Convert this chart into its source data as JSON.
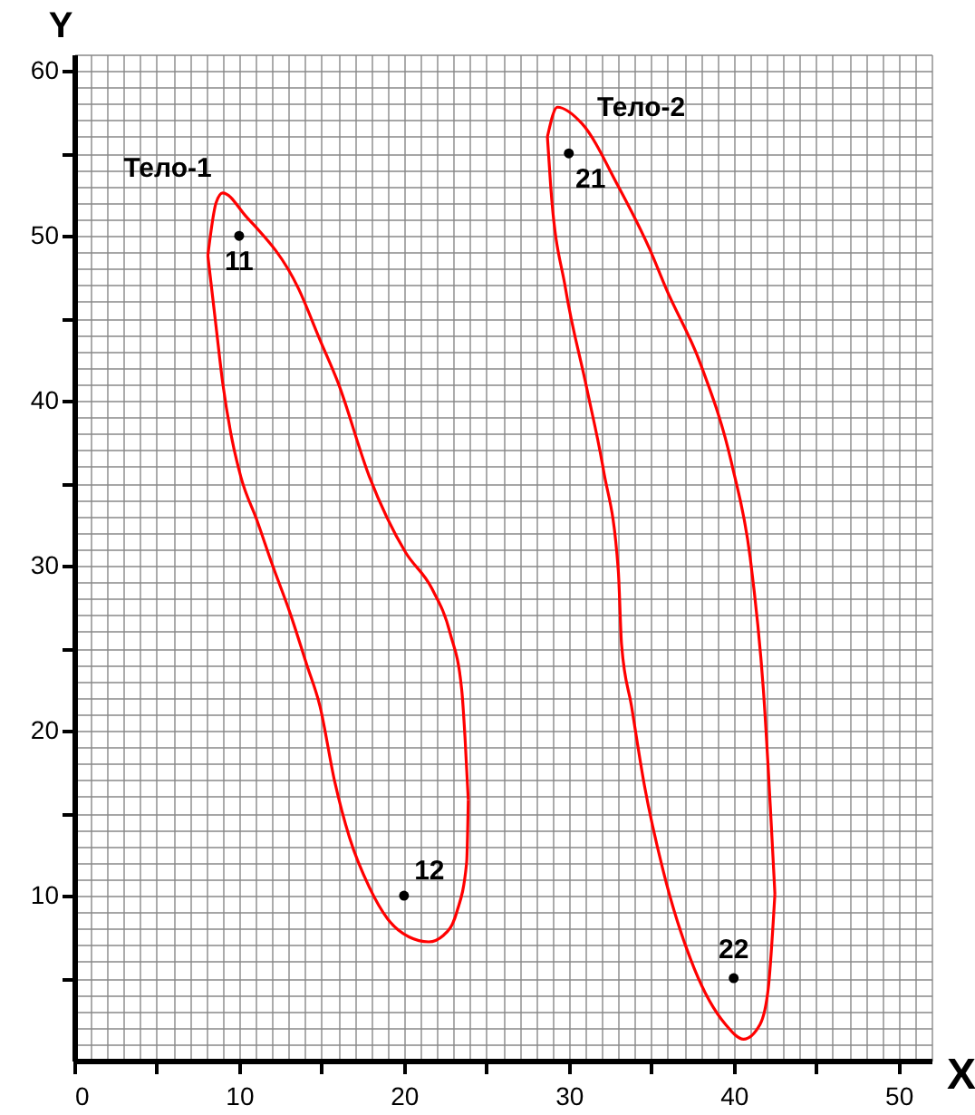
{
  "chart_data": {
    "type": "scatter",
    "xlabel": "X",
    "ylabel": "Y",
    "xlim": [
      0,
      52
    ],
    "ylim": [
      0,
      61
    ],
    "xticks": [
      {
        "value": 0,
        "label": "0"
      },
      {
        "value": 5,
        "label": null
      },
      10,
      {
        "value": 15,
        "label": null
      },
      20,
      {
        "value": 25,
        "label": null
      },
      30,
      {
        "value": 35,
        "label": null
      },
      40,
      {
        "value": 45,
        "label": null
      },
      50
    ],
    "yticks": [
      {
        "value": 5,
        "label": null
      },
      10,
      {
        "value": 15,
        "label": null
      },
      20,
      {
        "value": 25,
        "label": null
      },
      30,
      {
        "value": 35,
        "label": null
      },
      40,
      {
        "value": 45,
        "label": null
      },
      50,
      {
        "value": 55,
        "label": null
      },
      60
    ],
    "grid": true,
    "series": [
      {
        "type": "line",
        "name": "Тело-1",
        "color": "#ff0000",
        "marker": "none",
        "x": [
          8.1,
          8.6,
          9.0,
          10.4,
          13.6,
          14.9,
          16.0,
          17.9,
          20.1,
          21.7,
          22.8,
          23.5,
          23.7,
          23.9
        ],
        "values": [
          48.8,
          52.0,
          52.6,
          51.2,
          46.8,
          43.7,
          41.1,
          35.4,
          30.8,
          28.6,
          25.9,
          22.5,
          19.6,
          15.8
        ]
      },
      {
        "type": "line",
        "color": "#ff0000",
        "marker": "none",
        "x": [
          23.9,
          23.8,
          23.2,
          22.4,
          21.5,
          20.3,
          19.0,
          17.9,
          16.7,
          15.8,
          14.9,
          14.1,
          13.1,
          12.0,
          11.1,
          10.1,
          9.5,
          9.0,
          8.6,
          8.1
        ],
        "values": [
          15.8,
          12.0,
          9.0,
          7.6,
          7.2,
          7.5,
          8.6,
          10.5,
          13.5,
          16.9,
          21.5,
          24.0,
          27.1,
          30.1,
          32.7,
          35.4,
          38.0,
          41.1,
          44.5,
          48.8
        ]
      },
      {
        "type": "line",
        "name": "Тело-2",
        "color": "#ff0000",
        "marker": "none",
        "x": [
          28.7,
          29.3,
          30.8,
          33.0,
          34.9,
          35.9,
          38.0,
          39.9,
          41.0,
          41.8,
          42.5
        ],
        "values": [
          56.0,
          57.8,
          56.8,
          53.0,
          49.2,
          46.8,
          42.2,
          36.1,
          30.5,
          22.5,
          10.1
        ]
      },
      {
        "type": "line",
        "color": "#ff0000",
        "marker": "none",
        "x": [
          42.5,
          42.1,
          41.6,
          40.6,
          39.5,
          37.6,
          35.7,
          34.6,
          33.8,
          33.2,
          33.0,
          32.1,
          31.1,
          29.8,
          28.9,
          28.7
        ],
        "values": [
          10.1,
          4.4,
          2.2,
          1.3,
          2.2,
          5.6,
          11.6,
          16.6,
          21.5,
          25.2,
          29.7,
          35.8,
          40.7,
          46.8,
          53.0,
          56.0
        ]
      },
      {
        "color": "#000000",
        "marker": "circle",
        "x": [
          10,
          20,
          30,
          40
        ],
        "values": [
          50,
          10,
          55,
          5
        ]
      }
    ],
    "annotations": [
      {
        "text": "11",
        "x": 10,
        "y": 50
      },
      {
        "text": "12",
        "x": 20,
        "y": 10
      },
      {
        "text": "21",
        "x": 30,
        "y": 55
      },
      {
        "text": "22",
        "x": 40,
        "y": 5
      }
    ]
  }
}
